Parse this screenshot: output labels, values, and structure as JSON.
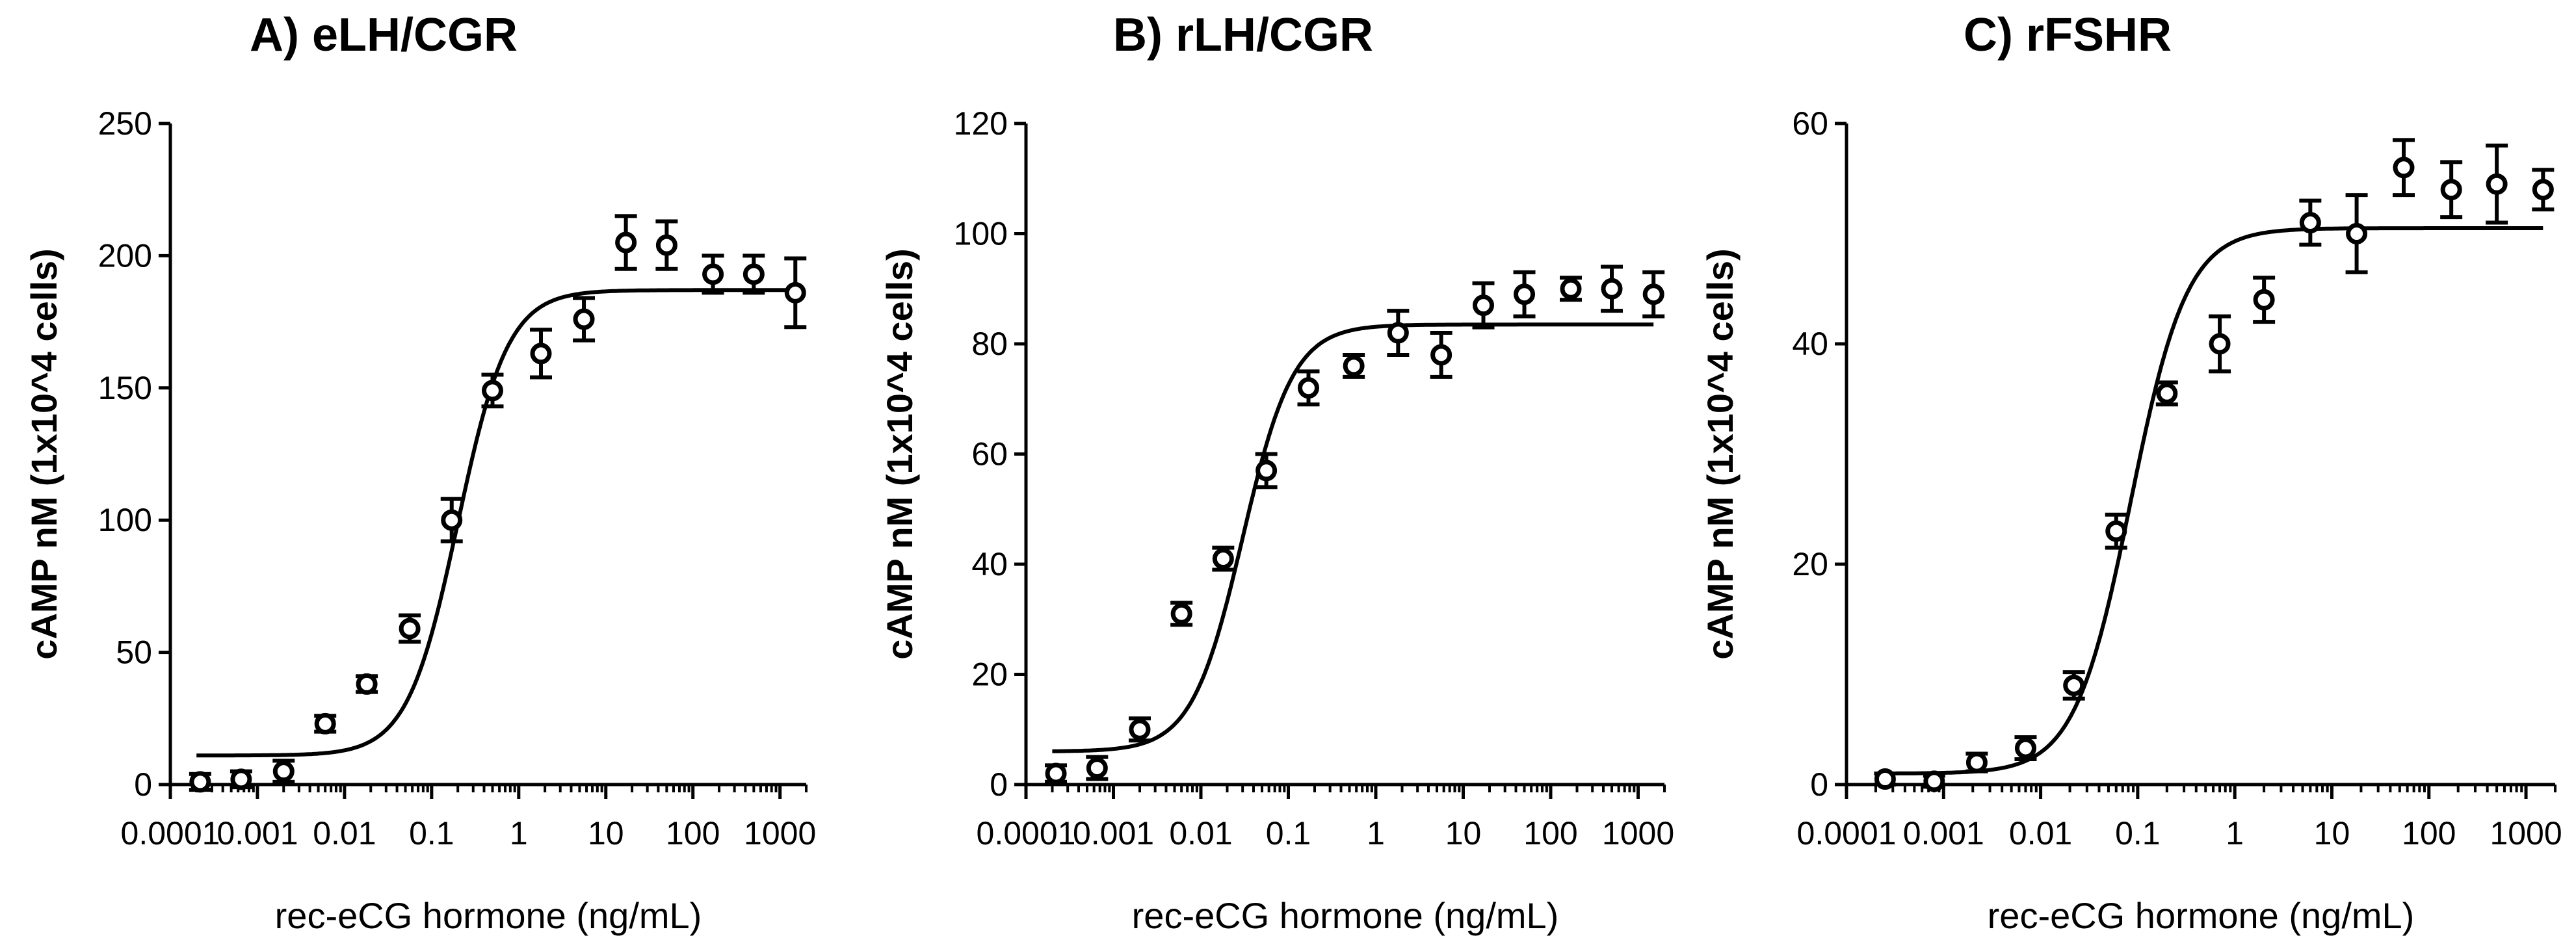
{
  "chart_data": [
    {
      "type": "scatter",
      "title": "A) eLH/CGR",
      "xlabel": "rec-eCG hormone (ng/mL)",
      "ylabel": "cAMP nM (1x10^4 cells)",
      "xscale": "log",
      "xlim": [
        0.0001,
        2000
      ],
      "xticks": [
        0.0001,
        0.001,
        0.01,
        0.1,
        1,
        10,
        100,
        1000
      ],
      "xtick_labels": [
        "0.0001",
        "0.001",
        "0.01",
        "0.1",
        "1",
        "10",
        "100",
        "1000"
      ],
      "ylim": [
        0,
        250
      ],
      "yticks": [
        0,
        50,
        100,
        150,
        200,
        250
      ],
      "ytick_labels": [
        "0",
        "50",
        "100",
        "150",
        "200",
        "250"
      ],
      "grid": false,
      "series": [
        {
          "marker": "open-circle",
          "points": [
            {
              "x": 0.00022,
              "y": 1,
              "err": 3
            },
            {
              "x": 0.00065,
              "y": 2,
              "err": 3
            },
            {
              "x": 0.002,
              "y": 5,
              "err": 4
            },
            {
              "x": 0.006,
              "y": 23,
              "err": 3
            },
            {
              "x": 0.018,
              "y": 38,
              "err": 3
            },
            {
              "x": 0.056,
              "y": 59,
              "err": 5
            },
            {
              "x": 0.17,
              "y": 100,
              "err": 8
            },
            {
              "x": 0.5,
              "y": 149,
              "err": 6
            },
            {
              "x": 1.8,
              "y": 163,
              "err": 9
            },
            {
              "x": 5.6,
              "y": 176,
              "err": 8
            },
            {
              "x": 17,
              "y": 205,
              "err": 10
            },
            {
              "x": 50,
              "y": 204,
              "err": 9
            },
            {
              "x": 170,
              "y": 193,
              "err": 7
            },
            {
              "x": 500,
              "y": 193,
              "err": 7
            },
            {
              "x": 1500,
              "y": 186,
              "err": 13
            }
          ]
        },
        {
          "type": "line",
          "fit": "sigmoid",
          "bottom": 11,
          "top": 187,
          "ec50": 0.2,
          "hill": 1.5
        }
      ]
    },
    {
      "type": "scatter",
      "title": "B) rLH/CGR",
      "xlabel": "rec-eCG hormone (ng/mL)",
      "ylabel": "cAMP nM (1x10^4 cells)",
      "xscale": "log",
      "xlim": [
        0.0001,
        2000
      ],
      "xticks": [
        0.0001,
        0.001,
        0.01,
        0.1,
        1,
        10,
        100,
        1000
      ],
      "xtick_labels": [
        "0.0001",
        "0.001",
        "0.01",
        "0.1",
        "1",
        "10",
        "100",
        "1000"
      ],
      "ylim": [
        0,
        120
      ],
      "yticks": [
        0,
        20,
        40,
        60,
        80,
        100,
        120
      ],
      "ytick_labels": [
        "0",
        "20",
        "40",
        "60",
        "80",
        "100",
        "120"
      ],
      "grid": false,
      "series": [
        {
          "marker": "open-circle",
          "points": [
            {
              "x": 0.00022,
              "y": 2,
              "err": 1.5
            },
            {
              "x": 0.00065,
              "y": 3,
              "err": 2
            },
            {
              "x": 0.002,
              "y": 10,
              "err": 2
            },
            {
              "x": 0.006,
              "y": 31,
              "err": 2
            },
            {
              "x": 0.018,
              "y": 41,
              "err": 2
            },
            {
              "x": 0.056,
              "y": 57,
              "err": 3
            },
            {
              "x": 0.17,
              "y": 72,
              "err": 3
            },
            {
              "x": 0.56,
              "y": 76,
              "err": 2
            },
            {
              "x": 1.8,
              "y": 82,
              "err": 4
            },
            {
              "x": 5.6,
              "y": 78,
              "err": 4
            },
            {
              "x": 17,
              "y": 87,
              "err": 4
            },
            {
              "x": 50,
              "y": 89,
              "err": 4
            },
            {
              "x": 170,
              "y": 90,
              "err": 2
            },
            {
              "x": 500,
              "y": 90,
              "err": 4
            },
            {
              "x": 1500,
              "y": 89,
              "err": 4
            }
          ]
        },
        {
          "type": "line",
          "fit": "sigmoid",
          "bottom": 6,
          "top": 83.5,
          "ec50": 0.03,
          "hill": 1.5
        }
      ]
    },
    {
      "type": "scatter",
      "title": "C) rFSHR",
      "xlabel": "rec-eCG hormone (ng/mL)",
      "ylabel": "cAMP nM (1x10^4 cells)",
      "xscale": "log",
      "xlim": [
        0.0001,
        2000
      ],
      "xticks": [
        0.0001,
        0.001,
        0.01,
        0.1,
        1,
        10,
        100,
        1000
      ],
      "xtick_labels": [
        "0.0001",
        "0.001",
        "0.01",
        "0.1",
        "1",
        "10",
        "100",
        "1000"
      ],
      "ylim": [
        0,
        60
      ],
      "yticks": [
        0,
        20,
        40,
        60
      ],
      "ytick_labels": [
        "0",
        "20",
        "40",
        "60"
      ],
      "grid": false,
      "series": [
        {
          "marker": "open-circle",
          "points": [
            {
              "x": 0.00025,
              "y": 0.5,
              "err": 0.5
            },
            {
              "x": 0.0008,
              "y": 0.3,
              "err": 0.5
            },
            {
              "x": 0.0022,
              "y": 2,
              "err": 0.8
            },
            {
              "x": 0.007,
              "y": 3.3,
              "err": 1
            },
            {
              "x": 0.022,
              "y": 9,
              "err": 1.2
            },
            {
              "x": 0.06,
              "y": 23,
              "err": 1.5
            },
            {
              "x": 0.2,
              "y": 35.5,
              "err": 1
            },
            {
              "x": 0.7,
              "y": 40,
              "err": 2.5
            },
            {
              "x": 2,
              "y": 44,
              "err": 2
            },
            {
              "x": 6,
              "y": 51,
              "err": 2
            },
            {
              "x": 18,
              "y": 50,
              "err": 3.5
            },
            {
              "x": 55,
              "y": 56,
              "err": 2.5
            },
            {
              "x": 170,
              "y": 54,
              "err": 2.5
            },
            {
              "x": 500,
              "y": 54.5,
              "err": 3.5
            },
            {
              "x": 1500,
              "y": 54,
              "err": 1.8
            }
          ]
        },
        {
          "type": "line",
          "fit": "sigmoid",
          "bottom": 1,
          "top": 50.5,
          "ec50": 0.085,
          "hill": 1.5
        }
      ]
    }
  ]
}
